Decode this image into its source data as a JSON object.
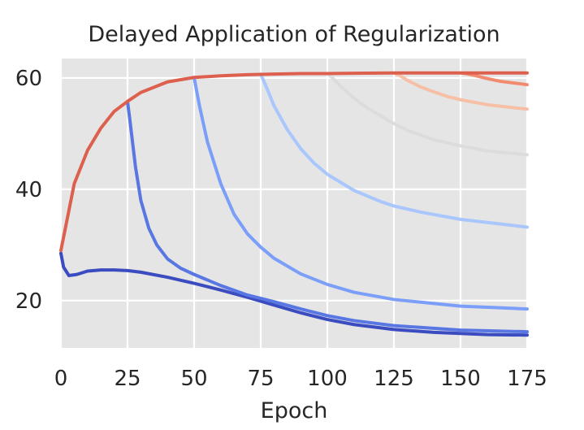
{
  "chart_data": {
    "type": "line",
    "title": "Delayed Application of Regularization",
    "xlabel": "Epoch",
    "ylabel": "",
    "xlim": [
      0,
      175
    ],
    "ylim": [
      11.5,
      63.5
    ],
    "x_ticks": [
      0,
      25,
      50,
      75,
      100,
      125,
      150,
      175
    ],
    "y_ticks": [
      20,
      40,
      60
    ],
    "grid": true,
    "legend": "none",
    "baseline": {
      "x": [
        0,
        5,
        10,
        15,
        20,
        25,
        30,
        40,
        50,
        60,
        70,
        80,
        90,
        100,
        110,
        125,
        150,
        175
      ],
      "y": [
        29,
        41,
        47,
        51,
        54,
        55.8,
        57.4,
        59.3,
        60.1,
        60.4,
        60.6,
        60.7,
        60.8,
        60.8,
        60.85,
        60.9,
        60.9,
        60.9
      ]
    },
    "series": [
      {
        "color": "#3b4cc0",
        "x": [
          0,
          1,
          3,
          6,
          10,
          15,
          20,
          25,
          30,
          40,
          50,
          60,
          70,
          80,
          90,
          100,
          110,
          125,
          140,
          150,
          160,
          175
        ],
        "y": [
          28.5,
          26,
          24.5,
          24.7,
          25.3,
          25.5,
          25.5,
          25.4,
          25.1,
          24.2,
          23.1,
          21.9,
          20.6,
          19.2,
          17.8,
          16.6,
          15.7,
          14.8,
          14.3,
          14.1,
          13.9,
          13.8
        ]
      },
      {
        "color": "#5977e3",
        "x": [
          25,
          26,
          28,
          30,
          33,
          36,
          40,
          45,
          50,
          60,
          70,
          80,
          90,
          100,
          110,
          125,
          150,
          175
        ],
        "y": [
          55.8,
          52,
          44,
          38,
          33,
          30,
          27.5,
          25.8,
          24.7,
          22.7,
          21.0,
          19.8,
          18.5,
          17.3,
          16.4,
          15.5,
          14.7,
          14.4
        ]
      },
      {
        "color": "#7b9ff9",
        "x": [
          50,
          52,
          55,
          60,
          65,
          70,
          75,
          80,
          90,
          100,
          110,
          125,
          150,
          175
        ],
        "y": [
          60.1,
          55,
          48.5,
          41,
          35.5,
          32,
          29.6,
          27.6,
          24.8,
          22.9,
          21.5,
          20.2,
          19,
          18.5
        ]
      },
      {
        "color": "#a9c6fd",
        "x": [
          75,
          77,
          80,
          85,
          90,
          95,
          100,
          110,
          120,
          125,
          135,
          150,
          175
        ],
        "y": [
          60.7,
          58.5,
          55,
          50.7,
          47.3,
          44.7,
          42.7,
          39.8,
          37.8,
          37.0,
          35.9,
          34.6,
          33.2
        ]
      },
      {
        "color": "#dddcdc",
        "x": [
          100,
          102,
          105,
          110,
          115,
          120,
          125,
          130,
          140,
          150,
          160,
          175
        ],
        "y": [
          60.8,
          60,
          58.5,
          56.4,
          54.6,
          53.2,
          51.8,
          50.6,
          48.9,
          47.8,
          46.9,
          46.2
        ]
      },
      {
        "color": "#f6bfa6",
        "x": [
          125,
          127,
          130,
          135,
          140,
          145,
          150,
          160,
          175
        ],
        "y": [
          60.9,
          60.5,
          59.6,
          58.4,
          57.5,
          56.7,
          56.1,
          55.2,
          54.4
        ]
      },
      {
        "color": "#f08b6e",
        "x": [
          150,
          152,
          155,
          160,
          165,
          170,
          175
        ],
        "y": [
          60.9,
          60.8,
          60.5,
          59.9,
          59.4,
          59.1,
          58.8
        ]
      },
      {
        "color": "#dd604f",
        "x": [
          0,
          5,
          10,
          15,
          20,
          25,
          30,
          40,
          50,
          60,
          70,
          80,
          90,
          100,
          110,
          125,
          150,
          175
        ],
        "y": [
          29,
          41,
          47,
          51,
          54,
          55.8,
          57.4,
          59.3,
          60.1,
          60.4,
          60.6,
          60.7,
          60.8,
          60.8,
          60.85,
          60.9,
          60.9,
          60.9
        ]
      }
    ]
  }
}
